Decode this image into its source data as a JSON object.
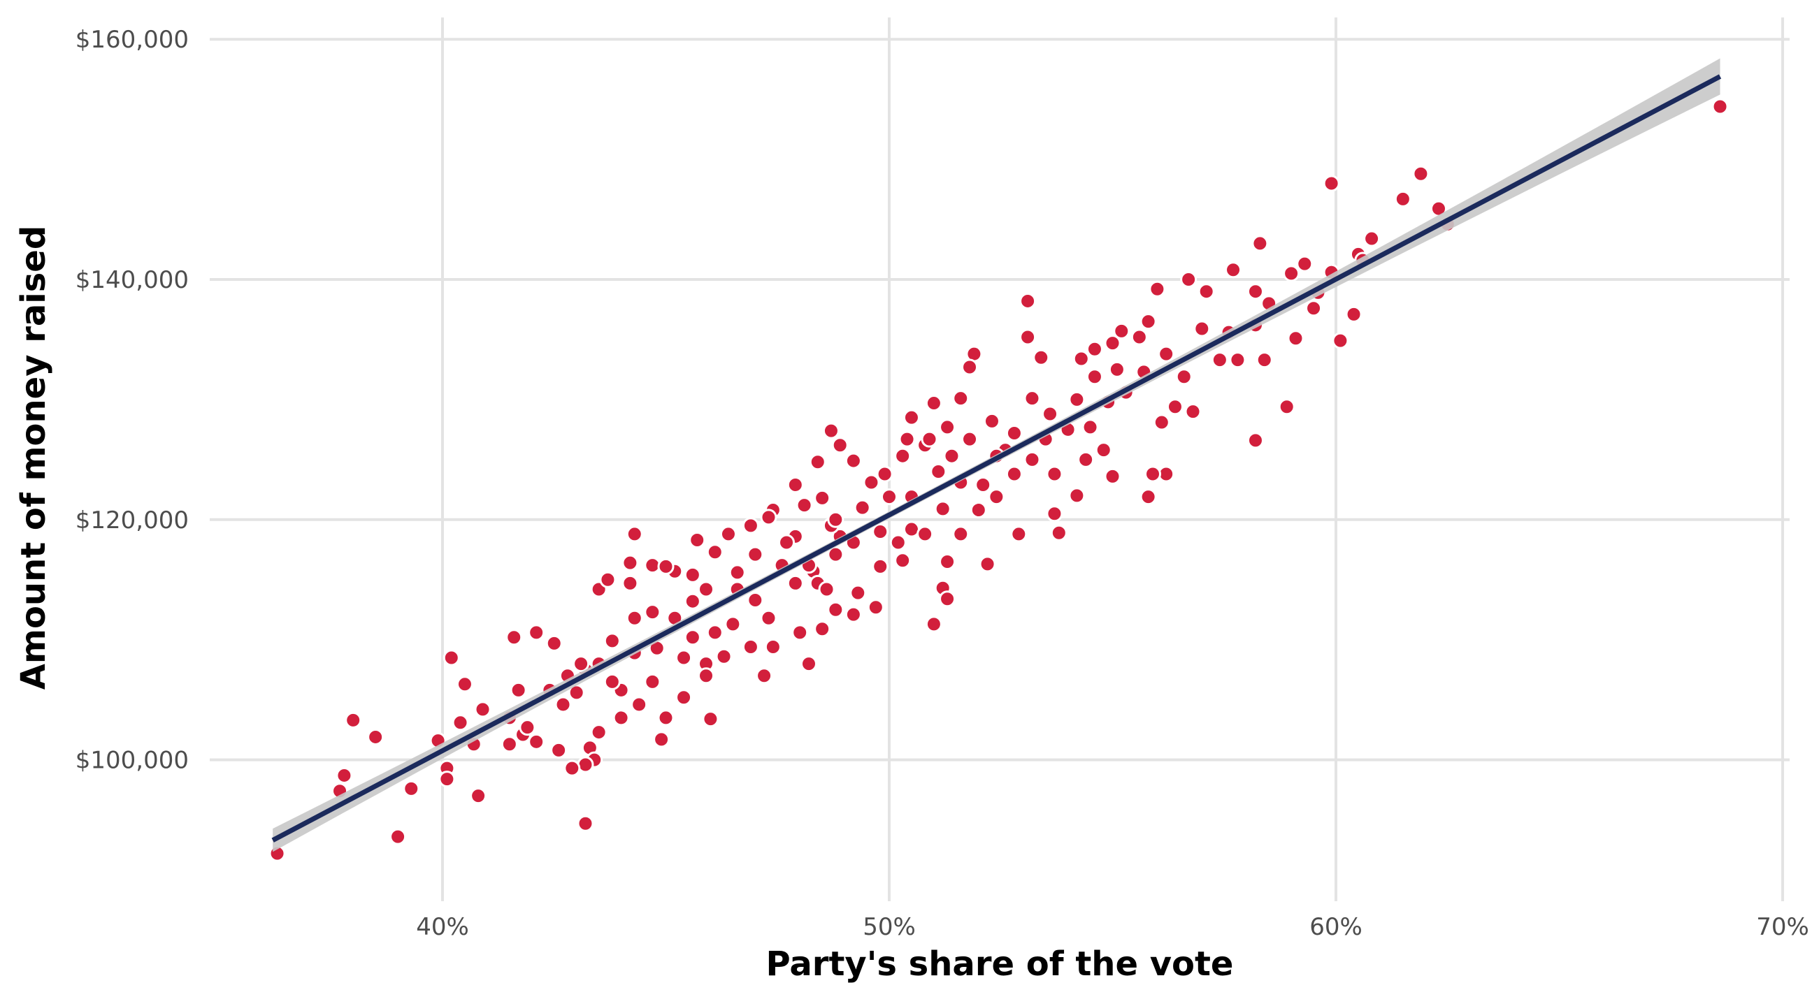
{
  "chart_data": {
    "type": "scatter",
    "title": "",
    "xlabel": "Party's share of the vote",
    "ylabel": "Amount of money raised",
    "xlim": [
      34.5,
      70.2
    ],
    "ylim": [
      88000,
      162000
    ],
    "x_ticks": [
      40,
      50,
      60,
      70
    ],
    "x_tick_labels": [
      "40%",
      "50%",
      "60%",
      "70%"
    ],
    "y_ticks": [
      100000,
      120000,
      140000,
      160000
    ],
    "y_tick_labels": [
      "$100,000",
      "$120,000",
      "$140,000",
      "$160,000"
    ],
    "grid": true,
    "legend": "none",
    "colors": {
      "points": "#D21F3C",
      "point_outline": "#FFFFFF",
      "fit_line": "#1B2A5C",
      "ci_band": "#C8C8C8"
    },
    "fit": {
      "type": "linear",
      "intercept": 22240,
      "slope_per_pct": 1963,
      "x_range": [
        36.2,
        68.6
      ]
    },
    "points_units": "x in %, y in thousands of dollars",
    "points": [
      [
        36.3,
        92.2
      ],
      [
        68.6,
        154.4
      ],
      [
        61.9,
        148.8
      ],
      [
        59.9,
        148.0
      ],
      [
        61.5,
        146.7
      ],
      [
        62.3,
        145.9
      ],
      [
        62.5,
        144.6
      ],
      [
        60.8,
        143.4
      ],
      [
        58.3,
        143.0
      ],
      [
        60.5,
        142.1
      ],
      [
        60.6,
        141.6
      ],
      [
        59.3,
        141.3
      ],
      [
        57.7,
        140.8
      ],
      [
        59.9,
        140.6
      ],
      [
        56.7,
        140.0
      ],
      [
        59.0,
        140.5
      ],
      [
        56.0,
        139.2
      ],
      [
        57.1,
        139.0
      ],
      [
        58.2,
        139.0
      ],
      [
        59.6,
        138.9
      ],
      [
        53.1,
        138.2
      ],
      [
        58.5,
        138.0
      ],
      [
        59.5,
        137.6
      ],
      [
        60.4,
        137.1
      ],
      [
        59.1,
        135.1
      ],
      [
        60.1,
        134.9
      ],
      [
        58.2,
        136.2
      ],
      [
        57.6,
        135.6
      ],
      [
        57.0,
        135.9
      ],
      [
        58.4,
        133.3
      ],
      [
        57.4,
        133.3
      ],
      [
        57.8,
        133.3
      ],
      [
        58.9,
        129.4
      ],
      [
        58.2,
        126.6
      ],
      [
        56.8,
        129.0
      ],
      [
        56.4,
        129.4
      ],
      [
        56.6,
        131.9
      ],
      [
        56.2,
        133.8
      ],
      [
        55.8,
        136.5
      ],
      [
        55.6,
        135.2
      ],
      [
        55.2,
        135.7
      ],
      [
        55.0,
        134.7
      ],
      [
        54.6,
        134.2
      ],
      [
        54.3,
        133.4
      ],
      [
        54.6,
        131.9
      ],
      [
        55.1,
        132.5
      ],
      [
        55.7,
        132.3
      ],
      [
        56.1,
        128.1
      ],
      [
        56.2,
        123.8
      ],
      [
        55.9,
        123.8
      ],
      [
        55.8,
        121.9
      ],
      [
        55.0,
        123.6
      ],
      [
        54.2,
        122.0
      ],
      [
        53.8,
        118.9
      ],
      [
        53.7,
        120.5
      ],
      [
        52.9,
        118.8
      ],
      [
        52.2,
        116.3
      ],
      [
        51.6,
        118.8
      ],
      [
        51.3,
        116.5
      ],
      [
        51.2,
        114.3
      ],
      [
        51.3,
        113.4
      ],
      [
        51.0,
        111.3
      ],
      [
        53.1,
        135.2
      ],
      [
        53.2,
        130.1
      ],
      [
        53.4,
        133.5
      ],
      [
        54.2,
        130.0
      ],
      [
        53.6,
        128.8
      ],
      [
        52.8,
        127.2
      ],
      [
        52.6,
        125.8
      ],
      [
        52.3,
        128.2
      ],
      [
        51.9,
        133.8
      ],
      [
        51.8,
        132.7
      ],
      [
        51.6,
        130.1
      ],
      [
        51.0,
        129.7
      ],
      [
        50.5,
        128.5
      ],
      [
        50.8,
        126.2
      ],
      [
        50.4,
        126.7
      ],
      [
        49.9,
        123.8
      ],
      [
        49.6,
        123.1
      ],
      [
        49.4,
        121.0
      ],
      [
        49.2,
        124.9
      ],
      [
        48.9,
        126.2
      ],
      [
        48.7,
        127.4
      ],
      [
        48.4,
        124.8
      ],
      [
        48.5,
        121.8
      ],
      [
        48.1,
        121.2
      ],
      [
        47.9,
        122.9
      ],
      [
        47.4,
        120.8
      ],
      [
        46.9,
        119.5
      ],
      [
        46.4,
        118.8
      ],
      [
        46.1,
        117.3
      ],
      [
        45.7,
        118.3
      ],
      [
        44.3,
        118.8
      ],
      [
        44.2,
        114.7
      ],
      [
        43.5,
        114.2
      ],
      [
        43.7,
        115.0
      ],
      [
        44.2,
        116.4
      ],
      [
        44.7,
        116.2
      ],
      [
        45.2,
        115.7
      ],
      [
        45.6,
        115.4
      ],
      [
        45.9,
        114.2
      ],
      [
        46.6,
        114.2
      ],
      [
        47.0,
        113.3
      ],
      [
        47.3,
        111.8
      ],
      [
        48.0,
        110.6
      ],
      [
        47.4,
        109.4
      ],
      [
        46.9,
        109.4
      ],
      [
        46.3,
        108.6
      ],
      [
        45.9,
        108.0
      ],
      [
        45.4,
        108.5
      ],
      [
        44.8,
        109.3
      ],
      [
        44.3,
        108.9
      ],
      [
        43.8,
        109.9
      ],
      [
        43.5,
        108.0
      ],
      [
        43.2,
        107.5
      ],
      [
        42.8,
        107.0
      ],
      [
        42.4,
        105.8
      ],
      [
        42.7,
        104.6
      ],
      [
        43.0,
        105.6
      ],
      [
        44.0,
        105.8
      ],
      [
        44.4,
        104.6
      ],
      [
        44.7,
        106.5
      ],
      [
        45.0,
        103.5
      ],
      [
        45.4,
        105.2
      ],
      [
        46.0,
        103.4
      ],
      [
        44.9,
        101.7
      ],
      [
        44.0,
        103.5
      ],
      [
        43.5,
        102.3
      ],
      [
        43.3,
        101.0
      ],
      [
        43.4,
        100.0
      ],
      [
        43.2,
        99.6
      ],
      [
        42.9,
        99.3
      ],
      [
        42.6,
        100.8
      ],
      [
        42.1,
        101.5
      ],
      [
        41.8,
        102.1
      ],
      [
        41.5,
        101.3
      ],
      [
        41.5,
        103.5
      ],
      [
        41.7,
        105.8
      ],
      [
        41.6,
        110.2
      ],
      [
        42.1,
        110.6
      ],
      [
        40.9,
        104.2
      ],
      [
        40.4,
        103.1
      ],
      [
        40.2,
        108.5
      ],
      [
        40.5,
        106.3
      ],
      [
        40.7,
        101.3
      ],
      [
        39.9,
        101.6
      ],
      [
        40.1,
        99.3
      ],
      [
        40.1,
        98.4
      ],
      [
        39.3,
        97.6
      ],
      [
        39.0,
        93.6
      ],
      [
        40.8,
        97.0
      ],
      [
        38.5,
        101.9
      ],
      [
        38.0,
        103.3
      ],
      [
        37.8,
        98.7
      ],
      [
        37.7,
        97.4
      ],
      [
        43.2,
        94.7
      ],
      [
        45.0,
        116.1
      ],
      [
        45.9,
        107.0
      ],
      [
        47.2,
        107.0
      ],
      [
        48.2,
        108.0
      ],
      [
        48.5,
        110.9
      ],
      [
        48.8,
        112.5
      ],
      [
        49.2,
        112.1
      ],
      [
        49.7,
        112.7
      ],
      [
        49.3,
        113.9
      ],
      [
        49.8,
        116.1
      ],
      [
        50.3,
        116.6
      ],
      [
        50.5,
        119.2
      ],
      [
        50.8,
        118.8
      ],
      [
        51.2,
        120.9
      ],
      [
        51.6,
        123.1
      ],
      [
        52.1,
        122.9
      ],
      [
        52.4,
        125.3
      ],
      [
        52.8,
        123.8
      ],
      [
        53.2,
        125.0
      ],
      [
        53.5,
        126.7
      ],
      [
        54.0,
        127.5
      ],
      [
        54.5,
        127.7
      ],
      [
        54.8,
        125.8
      ],
      [
        54.4,
        125.0
      ],
      [
        54.9,
        129.8
      ],
      [
        55.3,
        130.6
      ],
      [
        53.7,
        123.8
      ],
      [
        52.4,
        121.9
      ],
      [
        52.0,
        120.8
      ],
      [
        50.2,
        118.1
      ],
      [
        49.8,
        119.0
      ],
      [
        49.2,
        118.1
      ],
      [
        48.8,
        117.1
      ],
      [
        48.3,
        115.7
      ],
      [
        47.9,
        114.7
      ],
      [
        47.6,
        116.2
      ],
      [
        47.0,
        117.1
      ],
      [
        46.6,
        115.6
      ],
      [
        46.5,
        111.3
      ],
      [
        46.1,
        110.6
      ],
      [
        45.6,
        110.2
      ],
      [
        45.2,
        111.8
      ],
      [
        45.6,
        113.2
      ],
      [
        44.7,
        112.3
      ],
      [
        44.3,
        111.8
      ],
      [
        48.4,
        114.7
      ],
      [
        48.6,
        114.2
      ],
      [
        48.9,
        118.6
      ],
      [
        47.9,
        118.6
      ],
      [
        47.7,
        118.1
      ],
      [
        48.2,
        116.2
      ],
      [
        48.7,
        119.5
      ],
      [
        48.8,
        120.0
      ],
      [
        51.1,
        124.0
      ],
      [
        51.4,
        125.3
      ],
      [
        51.8,
        126.7
      ],
      [
        51.3,
        127.7
      ],
      [
        50.9,
        126.7
      ],
      [
        50.3,
        125.3
      ],
      [
        50.0,
        121.9
      ],
      [
        50.5,
        121.9
      ],
      [
        47.3,
        120.2
      ],
      [
        42.5,
        109.7
      ],
      [
        41.9,
        102.7
      ],
      [
        43.1,
        108.0
      ],
      [
        43.8,
        106.5
      ]
    ]
  }
}
